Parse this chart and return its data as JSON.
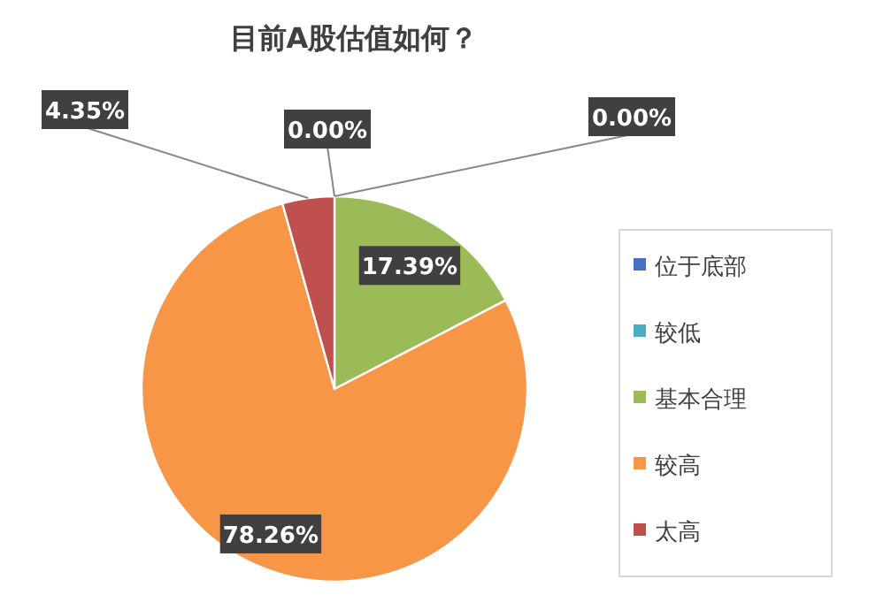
{
  "chart_data": {
    "type": "pie",
    "title": "目前A股估值如何？",
    "categories": [
      "位于底部",
      "较低",
      "基本合理",
      "较高",
      "太高"
    ],
    "values": [
      0,
      0,
      17.39,
      78.26,
      4.35
    ],
    "value_labels": [
      "0.00%",
      "0.00%",
      "17.39%",
      "78.26%",
      "4.35%"
    ],
    "colors": [
      "#4472c4",
      "#4bacc6",
      "#9bbb59",
      "#f79646",
      "#c0504d"
    ],
    "legend": "right"
  }
}
